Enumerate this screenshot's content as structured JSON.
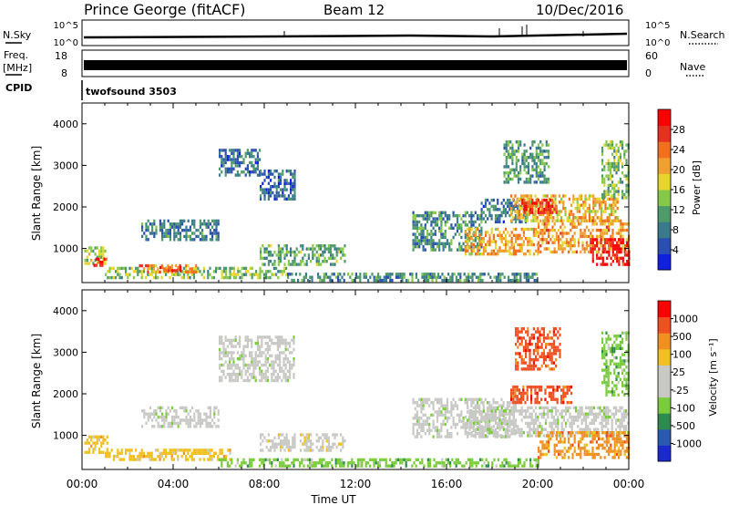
{
  "header": {
    "station": "Prince George (fitACF)",
    "beam": "Beam 12",
    "date": "10/Dec/2016"
  },
  "top_panels": {
    "nsky_label": "N.Sky",
    "nsky_ticks": [
      "10^5",
      "10^0"
    ],
    "nsearch_label": "N.Search",
    "nsearch_ticks": [
      "10^5",
      "10^0"
    ],
    "freq_label_1": "Freq.",
    "freq_label_2": "[MHz]",
    "freq_ticks": [
      "18",
      "8"
    ],
    "nave_label": "Nave",
    "nave_ticks": [
      "60",
      "0"
    ],
    "cpid_label": "CPID",
    "cpid_value": "twofsound 3503"
  },
  "colors": {
    "power_scale": [
      "#1020e0",
      "#2a4fb0",
      "#3a7a8a",
      "#4e9a6a",
      "#86c84a",
      "#e6d62c",
      "#f0a030",
      "#f07020",
      "#e83020",
      "#ff0000"
    ],
    "velocity_scale": [
      "#1a2ad0",
      "#2a5ab0",
      "#2e8a4e",
      "#7acc3c",
      "#c8c8c4",
      "#c8c8c4",
      "#f0c020",
      "#f09020",
      "#f05020",
      "#ff0000"
    ]
  },
  "chart_data": [
    {
      "type": "heatmap",
      "name": "power",
      "ylabel": "Slant Range [km]",
      "ylim": [
        180,
        4500
      ],
      "yticks": [
        "1000",
        "2000",
        "3000",
        "4000"
      ],
      "xlim_hours": [
        0,
        24
      ],
      "colorbar": {
        "label": "Power [dB]",
        "range": [
          0,
          32
        ],
        "ticks": [
          "4",
          "8",
          "12",
          "16",
          "20",
          "24",
          "28"
        ]
      },
      "regions": [
        {
          "t0": 0.1,
          "t1": 1.0,
          "r0": 650,
          "r1": 1050,
          "level": 14
        },
        {
          "t0": 0.5,
          "t1": 1.1,
          "r0": 600,
          "r1": 780,
          "level": 27
        },
        {
          "t0": 1.0,
          "t1": 9.0,
          "r0": 280,
          "r1": 560,
          "level": 12
        },
        {
          "t0": 2.5,
          "t1": 5.0,
          "r0": 420,
          "r1": 620,
          "level": 21
        },
        {
          "t0": 3.4,
          "t1": 4.3,
          "r0": 450,
          "r1": 580,
          "level": 26
        },
        {
          "t0": 2.6,
          "t1": 6.0,
          "r0": 1250,
          "r1": 1700,
          "level": 7
        },
        {
          "t0": 6.0,
          "t1": 7.8,
          "r0": 2800,
          "r1": 3400,
          "level": 6
        },
        {
          "t0": 7.8,
          "t1": 9.3,
          "r0": 2200,
          "r1": 2900,
          "level": 5
        },
        {
          "t0": 7.8,
          "t1": 11.5,
          "r0": 650,
          "r1": 1100,
          "level": 10
        },
        {
          "t0": 9.0,
          "t1": 20.0,
          "r0": 250,
          "r1": 420,
          "level": 8
        },
        {
          "t0": 14.5,
          "t1": 17.5,
          "r0": 1000,
          "r1": 1900,
          "level": 8
        },
        {
          "t0": 16.8,
          "t1": 20.0,
          "r0": 900,
          "r1": 1500,
          "level": 19
        },
        {
          "t0": 17.5,
          "t1": 19.5,
          "r0": 1650,
          "r1": 2200,
          "level": 6
        },
        {
          "t0": 18.8,
          "t1": 23.5,
          "r0": 1700,
          "r1": 2300,
          "level": 18
        },
        {
          "t0": 19.2,
          "t1": 20.8,
          "r0": 1850,
          "r1": 2200,
          "level": 26
        },
        {
          "t0": 18.5,
          "t1": 20.5,
          "r0": 2600,
          "r1": 3600,
          "level": 9
        },
        {
          "t0": 20.0,
          "t1": 24.0,
          "r0": 900,
          "r1": 1700,
          "level": 20
        },
        {
          "t0": 22.3,
          "t1": 24.0,
          "r0": 600,
          "r1": 1250,
          "level": 28
        },
        {
          "t0": 22.8,
          "t1": 24.0,
          "r0": 2200,
          "r1": 3600,
          "level": 12
        }
      ]
    },
    {
      "type": "heatmap",
      "name": "velocity",
      "ylabel": "Slant Range [km]",
      "ylim": [
        180,
        4500
      ],
      "yticks": [
        "1000",
        "2000",
        "3000",
        "4000"
      ],
      "xlim_hours": [
        0,
        24
      ],
      "xticks": [
        "00:00",
        "04:00",
        "08:00",
        "12:00",
        "16:00",
        "20:00",
        "00:00"
      ],
      "xlabel": "Time UT",
      "colorbar": {
        "label": "Velocity [m s⁻¹]",
        "ticks": [
          "1000",
          "500",
          "100",
          "25",
          "-25",
          "-100",
          "-500",
          "-1000"
        ]
      },
      "regions": [
        {
          "t0": 0.1,
          "t1": 1.1,
          "r0": 600,
          "r1": 1000,
          "level": 6
        },
        {
          "t0": 1.0,
          "t1": 6.5,
          "r0": 400,
          "r1": 680,
          "level": 6
        },
        {
          "t0": 2.6,
          "t1": 6.0,
          "r0": 1250,
          "r1": 1700,
          "level": 4
        },
        {
          "t0": 6.0,
          "t1": 9.3,
          "r0": 2300,
          "r1": 3400,
          "level": 4
        },
        {
          "t0": 6.0,
          "t1": 20.0,
          "r0": 250,
          "r1": 450,
          "level": 3
        },
        {
          "t0": 7.8,
          "t1": 11.5,
          "r0": 650,
          "r1": 1050,
          "level": 5
        },
        {
          "t0": 14.5,
          "t1": 19.0,
          "r0": 950,
          "r1": 1900,
          "level": 4
        },
        {
          "t0": 16.8,
          "t1": 24.0,
          "r0": 1000,
          "r1": 1700,
          "level": 4
        },
        {
          "t0": 18.8,
          "t1": 21.5,
          "r0": 1800,
          "r1": 2200,
          "level": 8
        },
        {
          "t0": 19.0,
          "t1": 21.0,
          "r0": 2600,
          "r1": 3600,
          "level": 8
        },
        {
          "t0": 20.0,
          "t1": 24.0,
          "r0": 500,
          "r1": 1100,
          "level": 7
        },
        {
          "t0": 22.8,
          "t1": 24.0,
          "r0": 2000,
          "r1": 3500,
          "level": 3
        }
      ]
    }
  ]
}
